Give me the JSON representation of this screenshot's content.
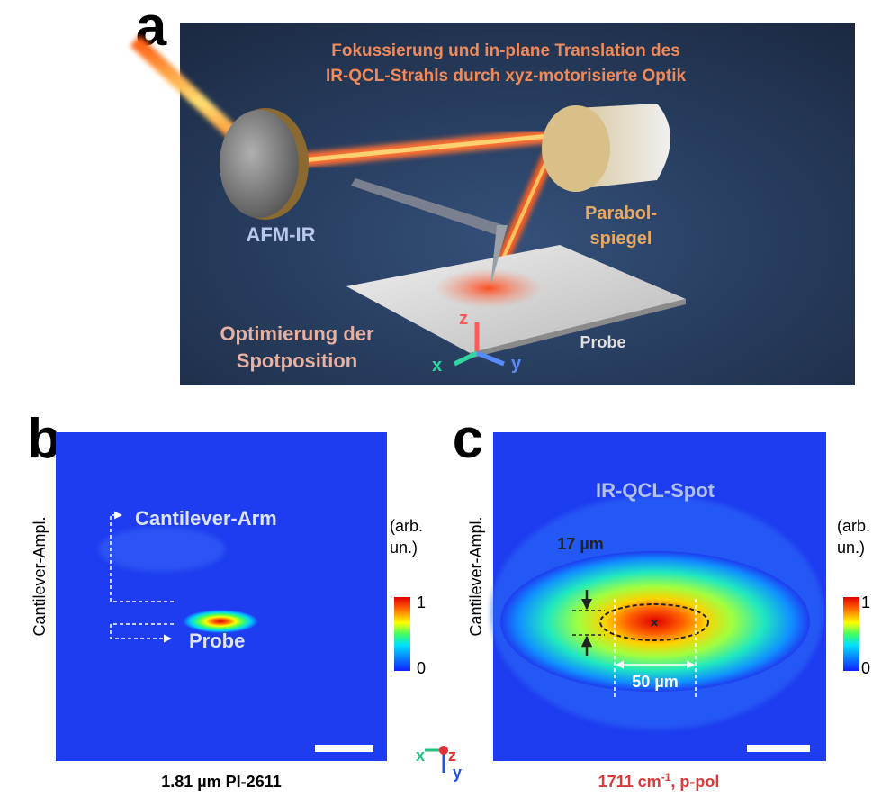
{
  "panel_a": {
    "label": "a",
    "title_lines": [
      "Fokussierung und in-plane Translation des",
      "IR-QCL-Strahls durch xyz-motorisierte Optik"
    ],
    "afm_label": "AFM-IR",
    "mirror_label_lines": [
      "Parabol-",
      "spiegel"
    ],
    "optimization_lines": [
      "Optimierung der",
      "Spotposition"
    ],
    "sample_label": "Probe",
    "axes": {
      "x": "x",
      "y": "y",
      "z": "z"
    }
  },
  "panel_b": {
    "label": "b",
    "y_label": "Cantilever-Ampl.",
    "arm_label": "Cantilever-Arm",
    "sample_label": "Probe",
    "colorbar": {
      "unit_lines": [
        "(arb.",
        "un.)"
      ],
      "max": 1,
      "min": 0
    },
    "caption": "1.81 µm PI-2611"
  },
  "orientation": {
    "x": "x",
    "z": "z",
    "y": "y"
  },
  "panel_c": {
    "label": "c",
    "spot_label": "IR-QCL-Spot",
    "height_label": "17 µm",
    "width_label": "50 µm",
    "y_label": "Cantilever-Ampl.",
    "colorbar": {
      "unit_lines": [
        "(arb.",
        "un.)"
      ],
      "max": 1,
      "min": 0
    },
    "caption": {
      "main": "1711 cm",
      "superscript": "-1",
      "suffix": ", p-pol"
    }
  }
}
